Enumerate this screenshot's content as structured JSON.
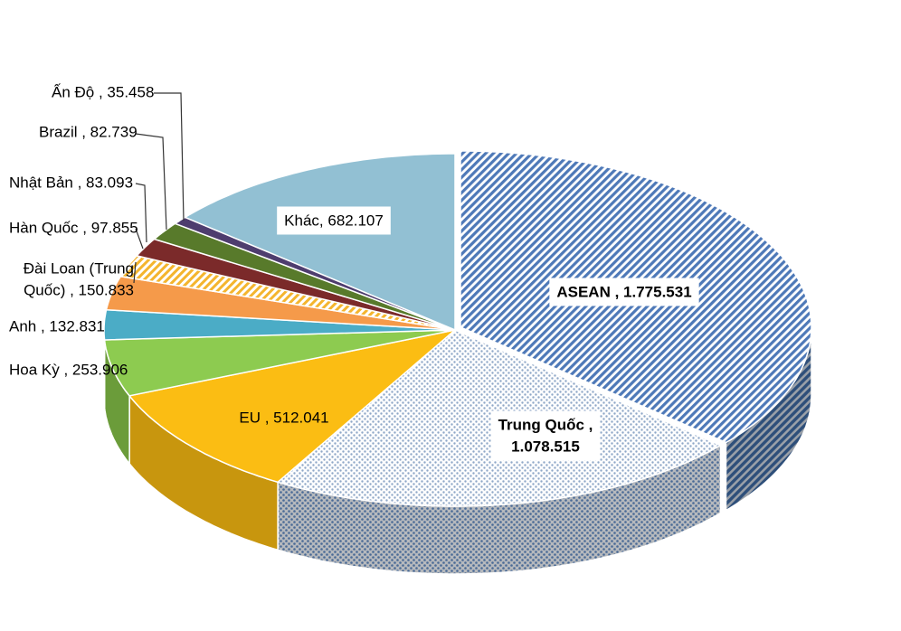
{
  "chart_data": {
    "type": "pie",
    "style": "3d-exploded",
    "series": [
      {
        "name": "",
        "slices": [
          {
            "label": "ASEAN",
            "value": 1775.531,
            "display": "ASEAN , 1.775.531",
            "color": "#4e79b8",
            "pattern": "diagonal-hatch"
          },
          {
            "label": "Trung Quốc",
            "value": 1078.515,
            "display": "Trung Quốc , 1.078.515",
            "color": "#8fa8c8",
            "pattern": "dotted-grid"
          },
          {
            "label": "EU",
            "value": 512.041,
            "display": "EU , 512.041",
            "color": "#fbbd13"
          },
          {
            "label": "Hoa Kỳ",
            "value": 253.906,
            "display": "Hoa Kỳ , 253.906",
            "color": "#8dcb50"
          },
          {
            "label": "Anh",
            "value": 132.831,
            "display": "Anh , 132.831",
            "color": "#4bacc6"
          },
          {
            "label": "Đài Loan (Trung Quốc)",
            "value": 150.833,
            "display": "Đài Loan (Trung Quốc) , 150.833",
            "color": "#f59a4a"
          },
          {
            "label": "Hàn Quốc",
            "value": 97.855,
            "display": "Hàn Quốc , 97.855",
            "color": "#f4b52e",
            "pattern": "diagonal-stripe"
          },
          {
            "label": "Nhật Bản",
            "value": 83.093,
            "display": "Nhật Bản , 83.093",
            "color": "#7b2a2a"
          },
          {
            "label": "Brazil",
            "value": 82.739,
            "display": "Brazil , 82.739",
            "color": "#587a2b"
          },
          {
            "label": "Ấn Độ",
            "value": 35.458,
            "display": "Ấn Độ , 35.458",
            "color": "#4e3d6e"
          },
          {
            "label": "Khác",
            "value": 682.107,
            "display": "Khác, 682.107",
            "color": "#92c0d3"
          }
        ]
      }
    ],
    "title": "",
    "legend": "none",
    "data_labels": "outside-with-leaders-for-small-slices"
  }
}
